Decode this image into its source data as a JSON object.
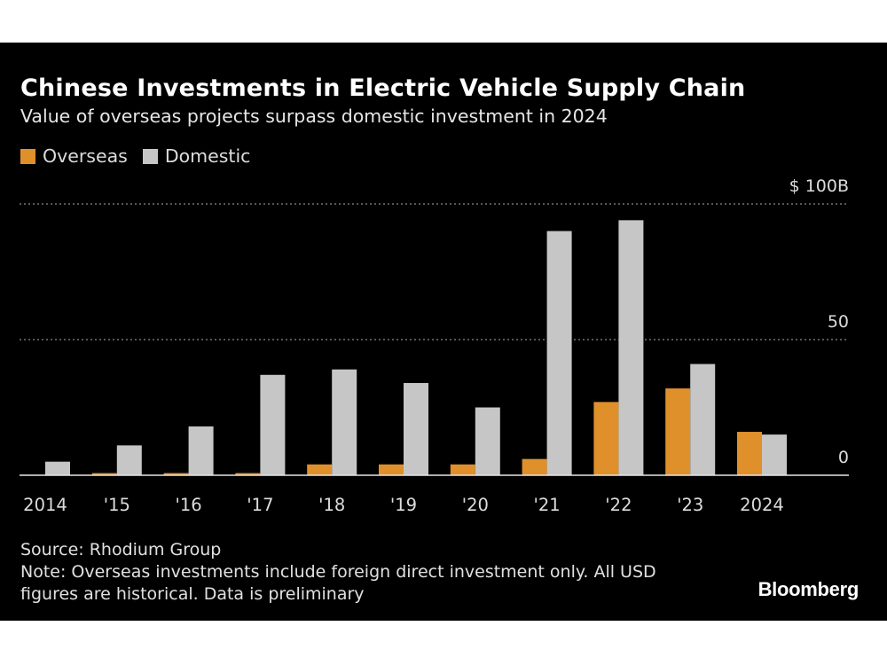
{
  "chart_data": {
    "type": "bar",
    "title": "Chinese Investments in Electric Vehicle Supply Chain",
    "subtitle": "Value of overseas projects surpass domestic investment in 2024",
    "categories": [
      "2014",
      "'15",
      "'16",
      "'17",
      "'18",
      "'19",
      "'20",
      "'21",
      "'22",
      "'23",
      "2024"
    ],
    "series": [
      {
        "name": "Overseas",
        "color": "#e0902b",
        "values": [
          0.2,
          0.8,
          0.8,
          0.8,
          4,
          4,
          4,
          6,
          27,
          32,
          16
        ]
      },
      {
        "name": "Domestic",
        "color": "#c6c6c6",
        "values": [
          5,
          11,
          18,
          37,
          39,
          34,
          25,
          90,
          94,
          41,
          15
        ]
      }
    ],
    "ylim": [
      0,
      100
    ],
    "yticks": [
      {
        "value": 0,
        "label": "0"
      },
      {
        "value": 50,
        "label": "50"
      },
      {
        "value": 100,
        "label": "$ 100B"
      }
    ],
    "xlabel": "",
    "ylabel": "",
    "grid": true,
    "legend_position": "top-left"
  },
  "footer": {
    "source": "Source: Rhodium Group",
    "note_line1": "Note: Overseas investments include foreign direct investment only. All USD",
    "note_line2": "figures are historical. Data is preliminary"
  },
  "brand": "Bloomberg"
}
